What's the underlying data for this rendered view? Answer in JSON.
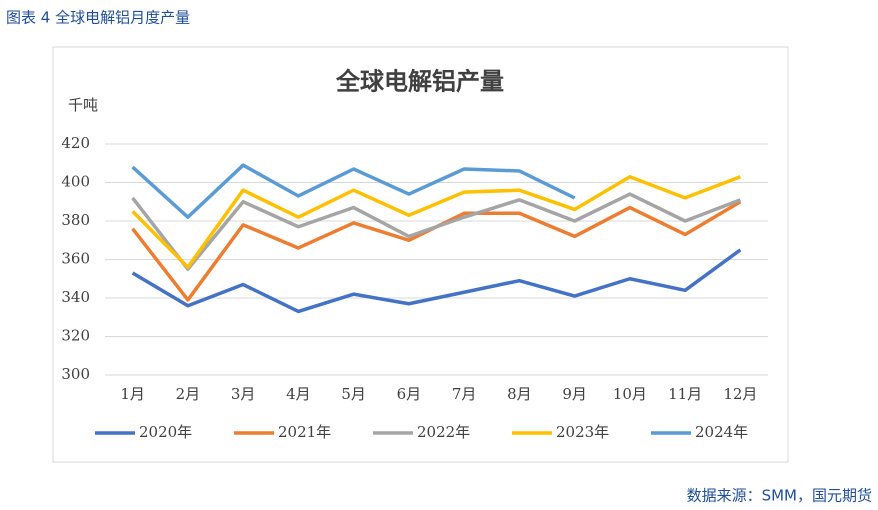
{
  "caption": "图表 4 全球电解铝月度产量",
  "source": "数据来源：SMM，国元期货",
  "chart_data": {
    "type": "line",
    "title": "全球电解铝产量",
    "y_label": "千吨",
    "categories": [
      "1月",
      "2月",
      "3月",
      "4月",
      "5月",
      "6月",
      "7月",
      "8月",
      "9月",
      "10月",
      "11月",
      "12月"
    ],
    "series": [
      {
        "name": "2020年",
        "color": "#4472c4",
        "values": [
          353,
          336,
          347,
          333,
          342,
          337,
          343,
          349,
          341,
          350,
          344,
          365
        ]
      },
      {
        "name": "2021年",
        "color": "#ed7d31",
        "values": [
          376,
          339,
          378,
          366,
          379,
          370,
          384,
          384,
          372,
          387,
          373,
          390
        ]
      },
      {
        "name": "2022年",
        "color": "#a5a5a5",
        "values": [
          392,
          355,
          390,
          377,
          387,
          372,
          382,
          391,
          380,
          394,
          380,
          391
        ]
      },
      {
        "name": "2023年",
        "color": "#ffc000",
        "values": [
          385,
          356,
          396,
          382,
          396,
          383,
          395,
          396,
          386,
          403,
          392,
          403
        ]
      },
      {
        "name": "2024年",
        "color": "#5b9bd5",
        "values": [
          408,
          382,
          409,
          393,
          407,
          394,
          407,
          406,
          392,
          null,
          null,
          null
        ]
      }
    ],
    "ylim": [
      300,
      420
    ],
    "yticks": [
      300,
      320,
      340,
      360,
      380,
      400,
      420
    ],
    "grid": true,
    "legend": "bottom"
  }
}
